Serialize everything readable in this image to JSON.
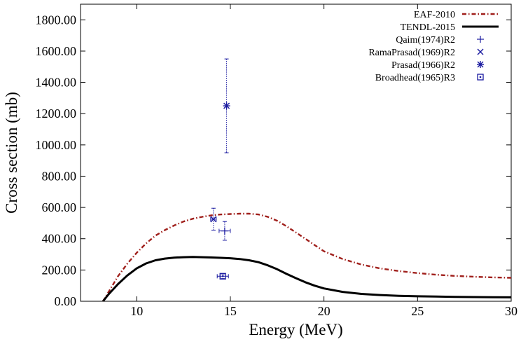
{
  "chart_data": {
    "type": "line",
    "xlabel": "Energy (MeV)",
    "ylabel": "Cross section (mb)",
    "xlim": [
      7,
      30
    ],
    "ylim": [
      0,
      1900
    ],
    "x_ticks": [
      10,
      15,
      20,
      25,
      30
    ],
    "x_tick_labels": [
      "10",
      "15",
      "20",
      "25",
      "30"
    ],
    "y_ticks": [
      0,
      200,
      400,
      600,
      800,
      1000,
      1200,
      1400,
      1600,
      1800
    ],
    "y_tick_labels": [
      "0.00",
      "200.00",
      "400.00",
      "600.00",
      "800.00",
      "1000.00",
      "1200.00",
      "1400.00",
      "1600.00",
      "1800.00"
    ],
    "grid": false,
    "legend_position": "top-right",
    "series": [
      {
        "name": "EAF-2010",
        "kind": "line",
        "style": "dash-dot",
        "color": "#a0201c",
        "x": [
          8.2,
          8.5,
          9.0,
          9.5,
          10.0,
          10.5,
          11.0,
          11.5,
          12.0,
          12.5,
          13.0,
          13.5,
          14.0,
          14.5,
          15.0,
          15.5,
          16.0,
          16.5,
          17.0,
          17.5,
          18.0,
          18.5,
          19.0,
          19.5,
          20.0,
          21.0,
          22.0,
          23.0,
          24.0,
          25.0,
          26.0,
          27.0,
          28.0,
          29.0,
          30.0
        ],
        "y": [
          0,
          60,
          160,
          240,
          310,
          370,
          420,
          455,
          485,
          510,
          528,
          540,
          550,
          555,
          558,
          560,
          560,
          555,
          540,
          515,
          480,
          440,
          400,
          360,
          320,
          270,
          235,
          210,
          193,
          180,
          170,
          162,
          157,
          153,
          150
        ]
      },
      {
        "name": "TENDL-2015",
        "kind": "line",
        "style": "solid",
        "color": "#000000",
        "x": [
          8.2,
          8.5,
          9.0,
          9.5,
          10.0,
          10.5,
          11.0,
          11.5,
          12.0,
          12.5,
          13.0,
          13.5,
          14.0,
          14.5,
          15.0,
          15.5,
          16.0,
          16.5,
          17.0,
          17.5,
          18.0,
          18.5,
          19.0,
          19.5,
          20.0,
          21.0,
          22.0,
          23.0,
          24.0,
          25.0,
          26.0,
          27.0,
          28.0,
          29.0,
          30.0
        ],
        "y": [
          0,
          45,
          110,
          165,
          210,
          242,
          262,
          273,
          279,
          282,
          283,
          282,
          280,
          278,
          275,
          270,
          262,
          250,
          230,
          205,
          175,
          148,
          122,
          100,
          82,
          60,
          47,
          40,
          35,
          32,
          30,
          28,
          27,
          26,
          25
        ]
      },
      {
        "name": "Qaim(1974)R2",
        "kind": "points",
        "marker": "plus",
        "color": "#1a1aa0",
        "points": [
          {
            "x": 14.7,
            "y": 450,
            "xerr": 0.3,
            "yerr": 60
          }
        ]
      },
      {
        "name": "RamaPrasad(1969)R2",
        "kind": "points",
        "marker": "cross",
        "color": "#1a1aa0",
        "points": [
          {
            "x": 14.1,
            "y": 525,
            "xerr": 0.15,
            "yerr": 70
          }
        ]
      },
      {
        "name": "Prasad(1966)R2",
        "kind": "points",
        "marker": "star",
        "color": "#1a1aa0",
        "points": [
          {
            "x": 14.8,
            "y": 1250,
            "xerr": 0,
            "yerr": 300
          }
        ]
      },
      {
        "name": "Broadhead(1965)R3",
        "kind": "points",
        "marker": "boxed-dot",
        "color": "#1a1aa0",
        "points": [
          {
            "x": 14.6,
            "y": 160,
            "xerr": 0.3,
            "yerr": 15
          }
        ]
      }
    ]
  }
}
